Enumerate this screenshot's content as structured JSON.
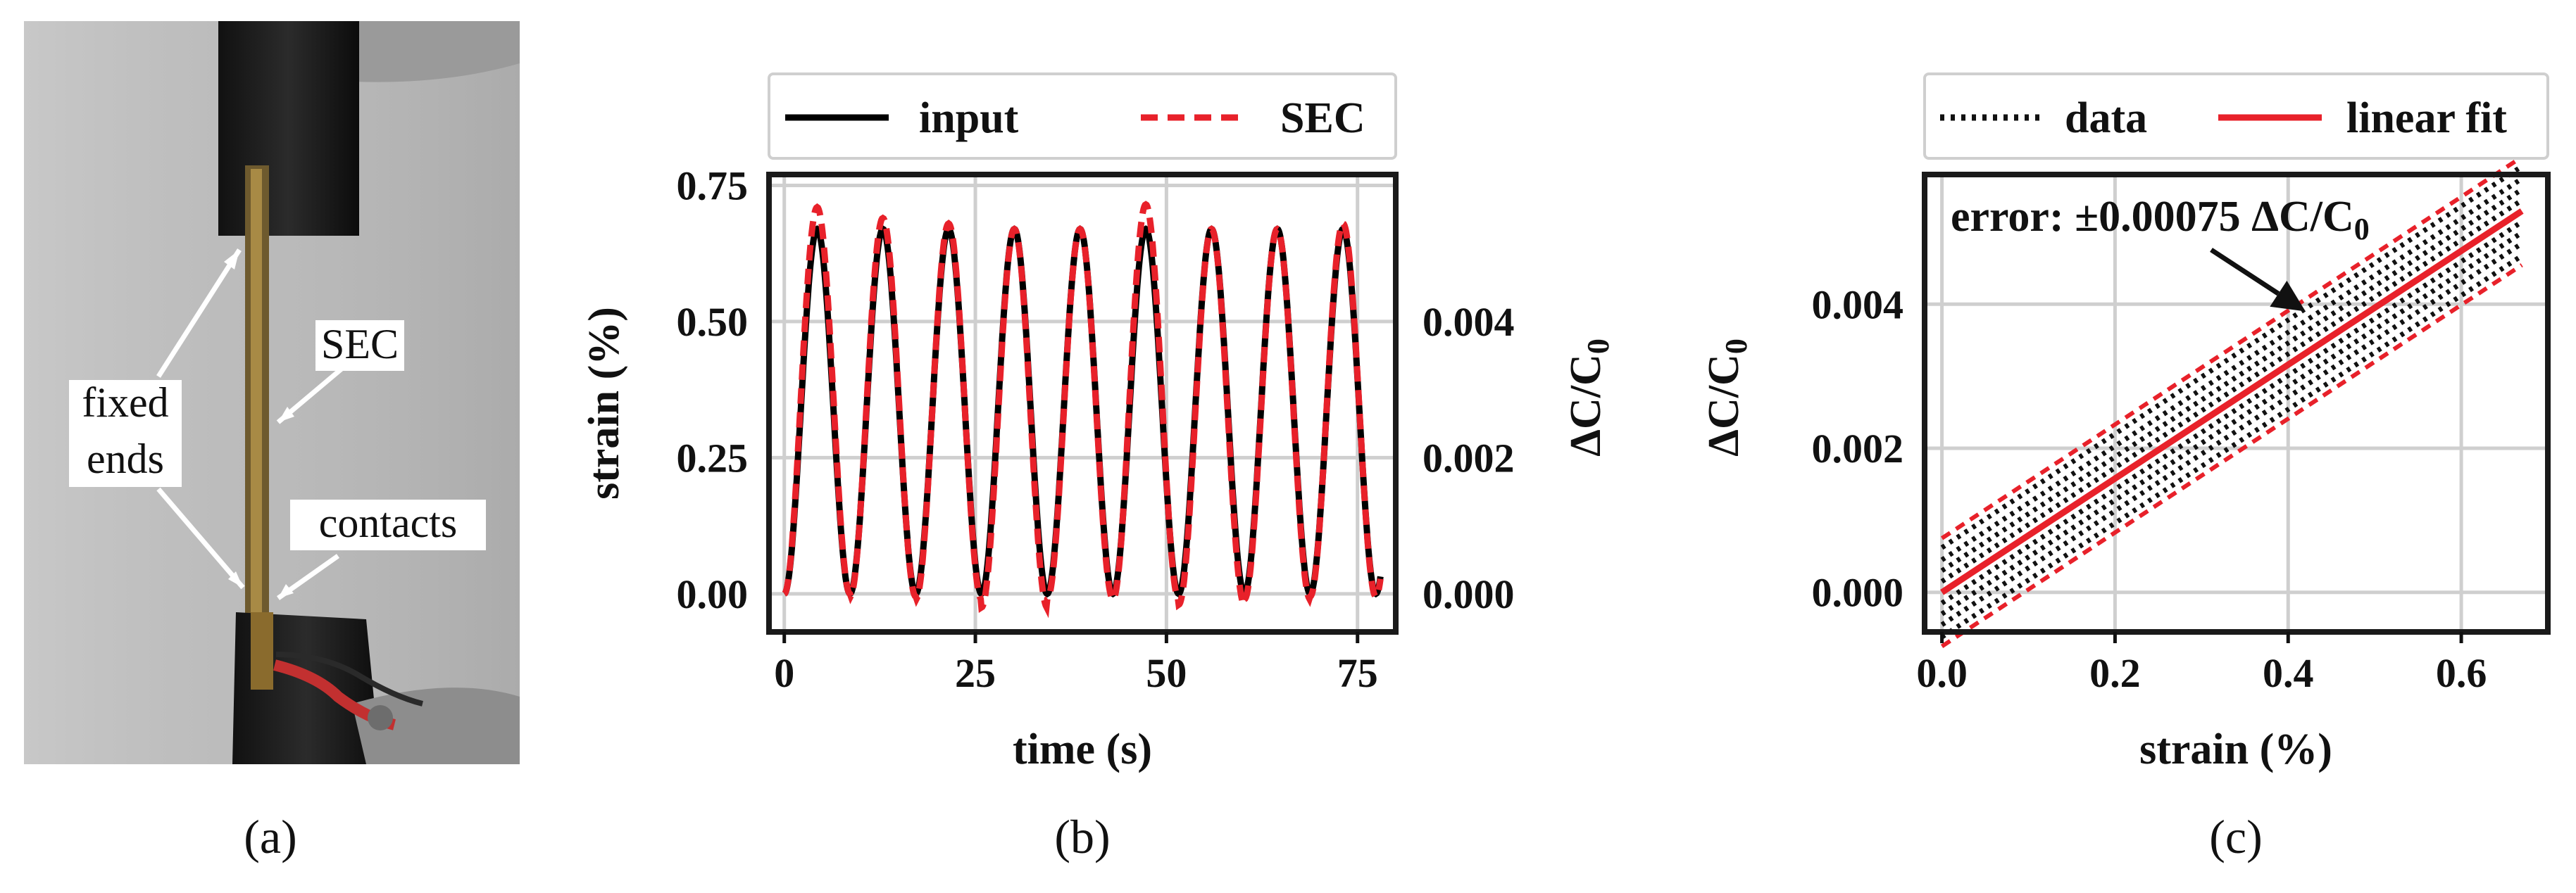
{
  "panel_a": {
    "callouts": {
      "fixed_ends": [
        "fixed",
        "ends"
      ],
      "sec": "SEC",
      "contacts": "contacts"
    },
    "caption": "(a)"
  },
  "panel_b_caption": "(b)",
  "panel_c_caption": "(c)",
  "colors": {
    "input": "#000000",
    "sec": "#e8212a",
    "data": "#111111",
    "fit": "#e8212a"
  },
  "chart_data": [
    {
      "id": "b",
      "type": "line",
      "xlabel": "time (s)",
      "ylabel": "strain (%)",
      "y2label": "ΔC/C0",
      "xlim": [
        -2,
        80
      ],
      "ylim": [
        -0.07,
        0.77
      ],
      "y2lim": [
        -0.00056,
        0.00616
      ],
      "xticks": [
        0,
        25,
        50,
        75
      ],
      "xtick_labels": [
        "0",
        "25",
        "50",
        "75"
      ],
      "yticks": [
        0.0,
        0.25,
        0.5,
        0.75
      ],
      "ytick_labels": [
        "0.00",
        "0.25",
        "0.50",
        "0.75"
      ],
      "y2ticks": [
        0.0,
        0.002,
        0.004
      ],
      "y2tick_labels": [
        "0.000",
        "0.002",
        "0.004"
      ],
      "legend": [
        {
          "label": "input",
          "style": "solid"
        },
        {
          "label": "SEC",
          "style": "dashed"
        }
      ],
      "series": [
        {
          "name": "input",
          "kind": "sine",
          "amplitude": 0.67,
          "period_s": 8.6,
          "duration_s": 78
        },
        {
          "name": "SEC",
          "kind": "sine",
          "amplitude": 0.68,
          "period_s": 8.6,
          "duration_s": 78,
          "peaks": [
            0.71,
            0.69,
            0.68,
            0.67,
            0.67,
            0.715,
            0.67,
            0.67,
            0.68
          ],
          "troughs": [
            0.0,
            -0.005,
            -0.01,
            -0.025,
            -0.01,
            -0.01,
            -0.02,
            -0.01,
            -0.005
          ]
        }
      ]
    },
    {
      "id": "c",
      "type": "line",
      "xlabel": "strain (%)",
      "ylabel": "ΔC/C0",
      "xlim": [
        -0.02,
        0.7
      ],
      "ylim": [
        -0.00055,
        0.0058
      ],
      "xticks": [
        0.0,
        0.2,
        0.4,
        0.6
      ],
      "xtick_labels": [
        "0.0",
        "0.2",
        "0.4",
        "0.6"
      ],
      "yticks": [
        0.0,
        0.002,
        0.004
      ],
      "ytick_labels": [
        "0.000",
        "0.002",
        "0.004"
      ],
      "legend": [
        {
          "label": "data",
          "style": "dotted"
        },
        {
          "label": "linear fit",
          "style": "solid"
        }
      ],
      "fit": {
        "slope": 0.0079,
        "intercept": 0.0,
        "x_range": [
          0.0,
          0.67
        ],
        "error_band": 0.00075
      },
      "annotation": {
        "text": "error: ±0.00075 ΔC/C0",
        "arrow_to": [
          0.42,
          0.0039
        ]
      }
    }
  ]
}
